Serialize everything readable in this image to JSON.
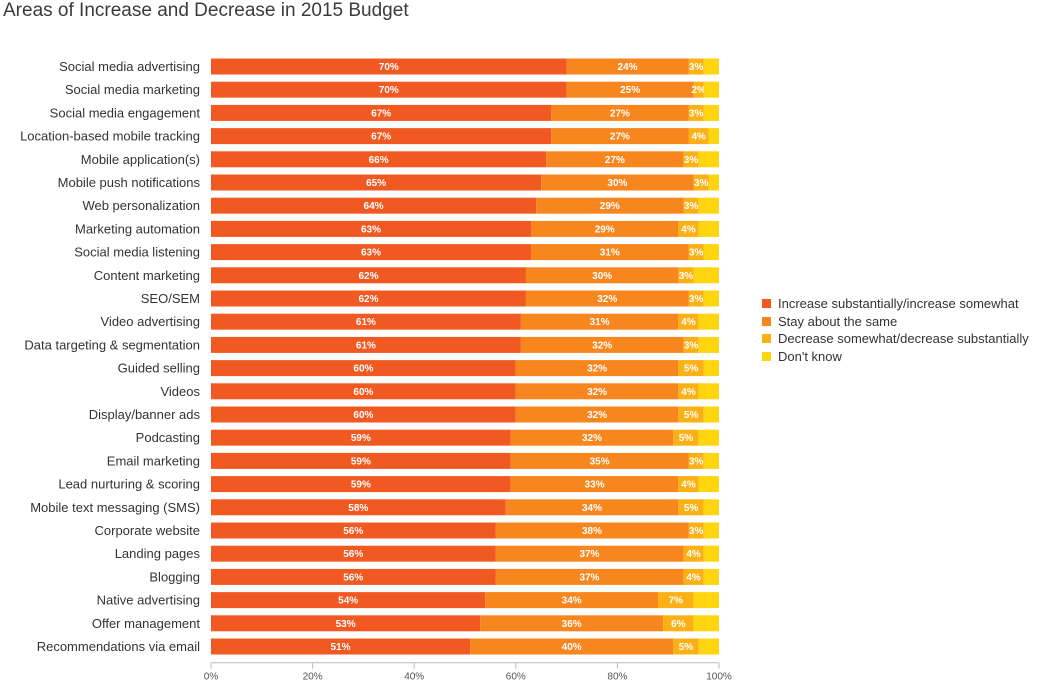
{
  "chart_data": {
    "type": "bar",
    "orientation": "horizontal",
    "stacked": true,
    "title": "Areas of Increase and Decrease in 2015 Budget",
    "categories": [
      "Social media advertising",
      "Social media marketing",
      "Social media engagement",
      "Location-based mobile tracking",
      "Mobile application(s)",
      "Mobile push notifications",
      "Web personalization",
      "Marketing automation",
      "Social media listening",
      "Content marketing",
      "SEO/SEM",
      "Video advertising",
      "Data targeting & segmentation",
      "Guided selling",
      "Videos",
      "Display/banner ads",
      "Podcasting",
      "Email marketing",
      "Lead nurturing & scoring",
      "Mobile text messaging (SMS)",
      "Corporate website",
      "Landing pages",
      "Blogging",
      "Native advertising",
      "Offer management",
      "Recommendations via email"
    ],
    "series": [
      {
        "name": "Increase substantially/increase somewhat",
        "color": "#f05a22",
        "values": [
          70,
          70,
          67,
          67,
          66,
          65,
          64,
          63,
          63,
          62,
          62,
          61,
          61,
          60,
          60,
          60,
          59,
          59,
          59,
          58,
          56,
          56,
          56,
          54,
          53,
          51
        ],
        "labels": [
          "70%",
          "70%",
          "67%",
          "67%",
          "66%",
          "65%",
          "64%",
          "63%",
          "63%",
          "62%",
          "62%",
          "61%",
          "61%",
          "60%",
          "60%",
          "60%",
          "59%",
          "59%",
          "59%",
          "58%",
          "56%",
          "56%",
          "56%",
          "54%",
          "53%",
          "51%"
        ]
      },
      {
        "name": "Stay about the same",
        "color": "#f7861f",
        "values": [
          24,
          25,
          27,
          27,
          27,
          30,
          29,
          29,
          31,
          30,
          32,
          31,
          32,
          32,
          32,
          32,
          32,
          35,
          33,
          34,
          38,
          37,
          37,
          34,
          36,
          40
        ],
        "labels": [
          "24%",
          "25%",
          "27%",
          "27%",
          "27%",
          "30%",
          "29%",
          "29%",
          "31%",
          "30%",
          "32%",
          "31%",
          "32%",
          "32%",
          "32%",
          "32%",
          "32%",
          "35%",
          "33%",
          "34%",
          "38%",
          "37%",
          "37%",
          "34%",
          "36%",
          "40%"
        ]
      },
      {
        "name": "Decrease somewhat/decrease substantially",
        "color": "#fbb116",
        "values": [
          3,
          2,
          3,
          4,
          3,
          3,
          3,
          4,
          3,
          3,
          3,
          4,
          3,
          5,
          4,
          5,
          5,
          3,
          4,
          5,
          3,
          4,
          4,
          7,
          6,
          5
        ],
        "labels": [
          "3%",
          "2%",
          "3%",
          "4%",
          "3%",
          "3%",
          "3%",
          "4%",
          "3%",
          "3%",
          "3%",
          "4%",
          "3%",
          "5%",
          "4%",
          "5%",
          "5%",
          "3%",
          "4%",
          "5%",
          "3%",
          "4%",
          "4%",
          "7%",
          "6%",
          "5%"
        ]
      },
      {
        "name": "Don't know",
        "color": "#ffd50f",
        "values": [
          3,
          3,
          3,
          2,
          4,
          2,
          4,
          4,
          3,
          5,
          3,
          4,
          4,
          3,
          4,
          3,
          4,
          3,
          4,
          3,
          3,
          3,
          3,
          5,
          5,
          4
        ]
      }
    ],
    "xlim": [
      0,
      100
    ],
    "xticks": [
      "0%",
      "20%",
      "40%",
      "60%",
      "80%",
      "100%"
    ],
    "xtick_values": [
      0,
      20,
      40,
      60,
      80,
      100
    ],
    "legend_position": "right",
    "grid": false
  }
}
